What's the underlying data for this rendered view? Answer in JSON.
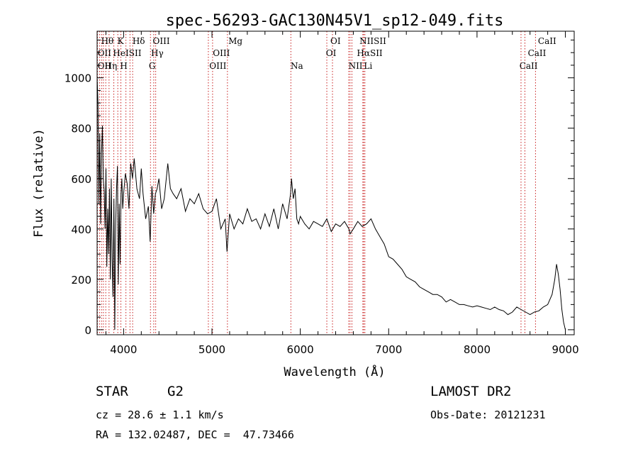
{
  "chart_data": {
    "type": "line",
    "title": "spec-56293-GAC130N45V1_sp12-049.fits",
    "xlabel": "Wavelength (Å)",
    "ylabel": "Flux (relative)",
    "xlim": [
      3700,
      9100
    ],
    "ylim": [
      -20,
      1185
    ],
    "xticks": [
      4000,
      5000,
      6000,
      7000,
      8000,
      9000
    ],
    "yticks": [
      0,
      200,
      400,
      600,
      800,
      1000
    ],
    "grid": false,
    "series": [
      {
        "x": [
          3700,
          3710,
          3720,
          3730,
          3740,
          3750,
          3760,
          3770,
          3780,
          3790,
          3800,
          3810,
          3820,
          3830,
          3840,
          3850,
          3860,
          3870,
          3880,
          3890,
          3900,
          3910,
          3920,
          3930,
          3940,
          3950,
          3960,
          3970,
          3980,
          3990,
          4000,
          4020,
          4040,
          4060,
          4080,
          4100,
          4120,
          4150,
          4180,
          4200,
          4220,
          4250,
          4280,
          4300,
          4320,
          4340,
          4360,
          4380,
          4400,
          4430,
          4460,
          4500,
          4530,
          4560,
          4600,
          4650,
          4700,
          4750,
          4800,
          4850,
          4900,
          4950,
          5000,
          5050,
          5100,
          5150,
          5170,
          5200,
          5250,
          5300,
          5350,
          5400,
          5450,
          5500,
          5550,
          5600,
          5650,
          5700,
          5750,
          5800,
          5850,
          5890,
          5900,
          5920,
          5940,
          5960,
          5980,
          6000,
          6050,
          6100,
          6150,
          6200,
          6250,
          6300,
          6350,
          6400,
          6450,
          6500,
          6550,
          6563,
          6600,
          6650,
          6700,
          6750,
          6800,
          6850,
          6900,
          6950,
          7000,
          7050,
          7100,
          7150,
          7200,
          7250,
          7300,
          7350,
          7400,
          7450,
          7500,
          7550,
          7600,
          7650,
          7700,
          7750,
          7800,
          7850,
          7900,
          7950,
          8000,
          8050,
          8100,
          8150,
          8200,
          8250,
          8300,
          8350,
          8400,
          8450,
          8500,
          8550,
          8600,
          8650,
          8700,
          8750,
          8800,
          8850,
          8880,
          8900,
          8920,
          8940,
          8960,
          8980,
          9000
        ],
        "y": [
          1000,
          900,
          500,
          780,
          420,
          700,
          810,
          600,
          550,
          400,
          640,
          250,
          480,
          300,
          560,
          200,
          600,
          280,
          130,
          520,
          0,
          420,
          560,
          650,
          180,
          500,
          260,
          540,
          600,
          480,
          540,
          620,
          580,
          480,
          660,
          600,
          680,
          560,
          520,
          640,
          540,
          440,
          490,
          350,
          570,
          460,
          540,
          560,
          600,
          480,
          520,
          660,
          560,
          540,
          520,
          560,
          470,
          520,
          500,
          540,
          480,
          460,
          470,
          520,
          400,
          440,
          310,
          460,
          400,
          440,
          420,
          480,
          430,
          440,
          400,
          460,
          410,
          480,
          400,
          500,
          440,
          540,
          600,
          520,
          560,
          440,
          420,
          450,
          420,
          400,
          430,
          420,
          410,
          440,
          390,
          420,
          410,
          430,
          400,
          380,
          400,
          430,
          410,
          420,
          440,
          400,
          370,
          340,
          290,
          280,
          260,
          240,
          210,
          200,
          190,
          170,
          160,
          150,
          140,
          140,
          130,
          110,
          120,
          110,
          100,
          100,
          95,
          90,
          95,
          90,
          85,
          80,
          90,
          80,
          75,
          60,
          70,
          90,
          80,
          70,
          60,
          70,
          75,
          90,
          100,
          140,
          200,
          260,
          220,
          160,
          80,
          30,
          0
        ]
      }
    ],
    "line_markers": [
      {
        "x": 3704,
        "labels": [
          "OII",
          "OII"
        ]
      },
      {
        "x": 3727,
        "labels": [
          ""
        ]
      },
      {
        "x": 3750,
        "labels": [
          "Hθ"
        ]
      },
      {
        "x": 3771,
        "labels": [
          "Hη"
        ]
      },
      {
        "x": 3798,
        "labels": [
          "HeI"
        ]
      },
      {
        "x": 3835,
        "labels": [
          ""
        ]
      },
      {
        "x": 3889,
        "labels": [
          ""
        ]
      },
      {
        "x": 3934,
        "labels": [
          "K"
        ]
      },
      {
        "x": 3969,
        "labels": [
          "H"
        ]
      },
      {
        "x": 4026,
        "labels": [
          "SII"
        ]
      },
      {
        "x": 4072,
        "labels": [
          ""
        ]
      },
      {
        "x": 4102,
        "labels": [
          "Hδ"
        ]
      },
      {
        "x": 4304,
        "labels": [
          "G"
        ]
      },
      {
        "x": 4341,
        "labels": [
          "Hγ"
        ]
      },
      {
        "x": 4363,
        "labels": [
          "OIII"
        ]
      },
      {
        "x": 4959,
        "labels": [
          "OIII"
        ]
      },
      {
        "x": 5007,
        "labels": [
          "OIII"
        ]
      },
      {
        "x": 5175,
        "labels": [
          "Mg"
        ]
      },
      {
        "x": 5893,
        "labels": [
          "Na"
        ]
      },
      {
        "x": 6300,
        "labels": [
          "OI"
        ]
      },
      {
        "x": 6364,
        "labels": [
          "OI"
        ]
      },
      {
        "x": 6548,
        "labels": [
          "NII"
        ]
      },
      {
        "x": 6563,
        "labels": [
          "Hα"
        ]
      },
      {
        "x": 6584,
        "labels": [
          "NII"
        ]
      },
      {
        "x": 6708,
        "labels": [
          "Li"
        ]
      },
      {
        "x": 6717,
        "labels": [
          "SII"
        ]
      },
      {
        "x": 6731,
        "labels": [
          "SII"
        ]
      },
      {
        "x": 8498,
        "labels": [
          "CaII"
        ]
      },
      {
        "x": 8542,
        "labels": [
          "CaII"
        ]
      },
      {
        "x": 8662,
        "labels": [
          "CaII"
        ]
      }
    ],
    "marker_labels": [
      {
        "text": "Hθ",
        "x": 3745,
        "row": 0
      },
      {
        "text": "K",
        "x": 3930,
        "row": 0
      },
      {
        "text": "Hδ",
        "x": 4100,
        "row": 0
      },
      {
        "text": "OIII",
        "x": 4330,
        "row": 0
      },
      {
        "text": "Mg",
        "x": 5185,
        "row": 0
      },
      {
        "text": "OI",
        "x": 6340,
        "row": 0
      },
      {
        "text": "NIISII",
        "x": 6670,
        "row": 0
      },
      {
        "text": "CaII",
        "x": 8690,
        "row": 0
      },
      {
        "text": "OII",
        "x": 3705,
        "row": 1
      },
      {
        "text": "HeISII",
        "x": 3880,
        "row": 1
      },
      {
        "text": "Hγ",
        "x": 4310,
        "row": 1
      },
      {
        "text": "OIII",
        "x": 5010,
        "row": 1
      },
      {
        "text": "OI",
        "x": 6290,
        "row": 1
      },
      {
        "text": "HαSII",
        "x": 6640,
        "row": 1
      },
      {
        "text": "CaII",
        "x": 8575,
        "row": 1
      },
      {
        "text": "OII",
        "x": 3705,
        "row": 2
      },
      {
        "text": "Hη",
        "x": 3785,
        "row": 2
      },
      {
        "text": "H",
        "x": 3960,
        "row": 2
      },
      {
        "text": "G",
        "x": 4285,
        "row": 2
      },
      {
        "text": "OIII",
        "x": 4970,
        "row": 2
      },
      {
        "text": "Na",
        "x": 5890,
        "row": 2
      },
      {
        "text": "NII",
        "x": 6545,
        "row": 2
      },
      {
        "text": "Li",
        "x": 6720,
        "row": 2
      },
      {
        "text": "CaII",
        "x": 8480,
        "row": 2
      }
    ],
    "colors": {
      "line": "#000000",
      "marker": "#c81e1e",
      "axis": "#000000"
    }
  },
  "info": {
    "object_class": "STAR",
    "subclass": "G2",
    "survey": "LAMOST DR2",
    "redshift": "cz = 28.6 ± 1.1 km/s",
    "obs_date": "Obs-Date: 20121231",
    "coords": "RA = 132.02487, DEC =  47.73466"
  }
}
